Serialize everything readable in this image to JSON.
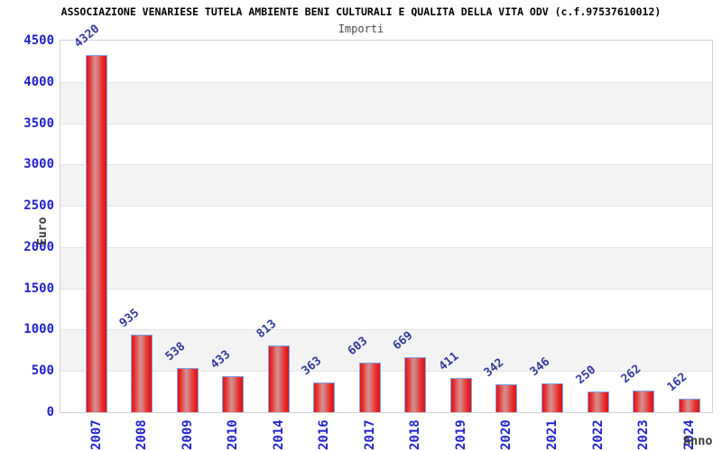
{
  "chart_data": {
    "type": "bar",
    "title": "ASSOCIAZIONE VENARIESE TUTELA AMBIENTE BENI CULTURALI E QUALITA DELLA VITA ODV (c.f.97537610012)",
    "subtitle": "Importi",
    "xlabel": "Anno",
    "ylabel": "Euro",
    "categories": [
      "2007",
      "2008",
      "2009",
      "2010",
      "2014",
      "2016",
      "2017",
      "2018",
      "2019",
      "2020",
      "2021",
      "2022",
      "2023",
      "2024"
    ],
    "values": [
      4320,
      935,
      538,
      433,
      813,
      363,
      603,
      669,
      411,
      342,
      346,
      250,
      262,
      162
    ],
    "ylim": [
      0,
      4500
    ],
    "ytick_step": 500,
    "ytick_labels": [
      "0",
      "500",
      "1000",
      "1500",
      "2000",
      "2500",
      "3000",
      "3500",
      "4000",
      "4500"
    ],
    "grid": "alternating-horizontal-bands",
    "legend": "none",
    "colors": {
      "bar_fill_edge": "#dd1515",
      "bar_fill_center": "#d29090",
      "bar_border": "#7aa6f0",
      "axis_tick_label": "#2222cc",
      "value_label": "#333a99",
      "axis_title": "#3a3a3a",
      "band_gray": "#f3f3f3",
      "band_white": "#ffffff",
      "plot_border": "#d2d2d2",
      "title": "#000000",
      "subtitle": "#4a4a4a"
    }
  }
}
